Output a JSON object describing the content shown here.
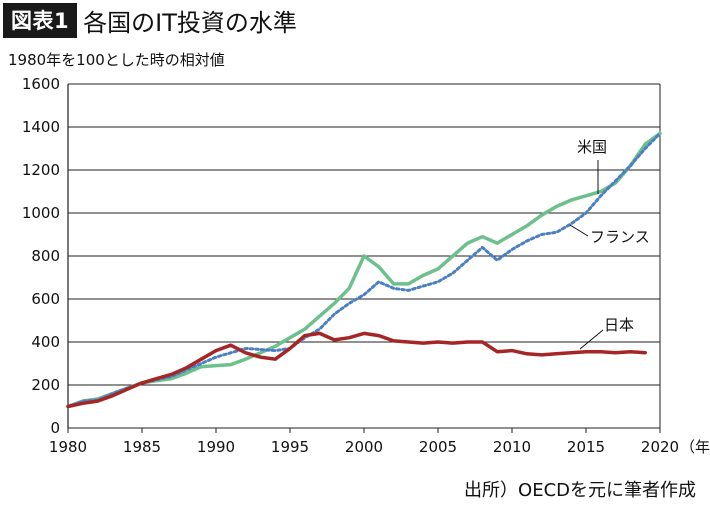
{
  "header": {
    "badge": "図表1",
    "title": "各国のIT投資の水準"
  },
  "subtitle": "1980年を100とした時の相対値",
  "source": "出所）OECDを元に筆者作成",
  "chart_data": {
    "type": "line",
    "title": "各国のIT投資の水準",
    "ylabel": "1980年を100とした時の相対値",
    "x_unit_label": "（年）",
    "ylim": [
      0,
      1600
    ],
    "xlim": [
      1980,
      2020
    ],
    "y_ticks": [
      0,
      200,
      400,
      600,
      800,
      1000,
      1200,
      1400,
      1600
    ],
    "x_ticks": [
      1980,
      1985,
      1990,
      1995,
      2000,
      2005,
      2010,
      2015,
      2020
    ],
    "grid": true,
    "series": [
      {
        "name": "米国",
        "color": "#6cc08b",
        "style": "solid",
        "x": [
          1980,
          1981,
          1982,
          1983,
          1984,
          1985,
          1986,
          1987,
          1988,
          1989,
          1990,
          1991,
          1992,
          1993,
          1994,
          1995,
          1996,
          1997,
          1998,
          1999,
          2000,
          2001,
          2002,
          2003,
          2004,
          2005,
          2006,
          2007,
          2008,
          2009,
          2010,
          2011,
          2012,
          2013,
          2014,
          2015,
          2016,
          2017,
          2018,
          2019,
          2020
        ],
        "y": [
          100,
          125,
          135,
          160,
          185,
          210,
          220,
          230,
          255,
          285,
          290,
          295,
          320,
          350,
          380,
          420,
          460,
          520,
          580,
          650,
          800,
          750,
          670,
          670,
          710,
          740,
          800,
          860,
          890,
          860,
          900,
          940,
          990,
          1030,
          1060,
          1080,
          1100,
          1140,
          1220,
          1320,
          1370
        ]
      },
      {
        "name": "フランス",
        "color": "#4a7fc4",
        "style": "dotted",
        "x": [
          1980,
          1981,
          1982,
          1983,
          1984,
          1985,
          1986,
          1987,
          1988,
          1989,
          1990,
          1991,
          1992,
          1993,
          1994,
          1995,
          1996,
          1997,
          1998,
          1999,
          2000,
          2001,
          2002,
          2003,
          2004,
          2005,
          2006,
          2007,
          2008,
          2009,
          2010,
          2011,
          2012,
          2013,
          2014,
          2015,
          2016,
          2017,
          2018,
          2019,
          2020
        ],
        "y": [
          100,
          125,
          130,
          160,
          185,
          210,
          225,
          240,
          270,
          300,
          330,
          350,
          370,
          365,
          360,
          370,
          420,
          460,
          530,
          580,
          620,
          680,
          650,
          640,
          660,
          680,
          720,
          780,
          840,
          780,
          830,
          870,
          900,
          910,
          950,
          1000,
          1080,
          1150,
          1220,
          1300,
          1370
        ]
      },
      {
        "name": "日本",
        "color": "#a62626",
        "style": "solid",
        "x": [
          1980,
          1981,
          1982,
          1983,
          1984,
          1985,
          1986,
          1987,
          1988,
          1989,
          1990,
          1991,
          1992,
          1993,
          1994,
          1995,
          1996,
          1997,
          1998,
          1999,
          2000,
          2001,
          2002,
          2003,
          2004,
          2005,
          2006,
          2007,
          2008,
          2009,
          2010,
          2011,
          2012,
          2013,
          2014,
          2015,
          2016,
          2017,
          2018,
          2019
        ],
        "y": [
          100,
          115,
          125,
          150,
          180,
          210,
          230,
          250,
          280,
          320,
          360,
          385,
          350,
          330,
          320,
          370,
          430,
          440,
          410,
          420,
          440,
          430,
          405,
          400,
          395,
          400,
          395,
          400,
          400,
          355,
          360,
          345,
          340,
          345,
          350,
          355,
          355,
          350,
          355,
          350
        ]
      }
    ]
  }
}
